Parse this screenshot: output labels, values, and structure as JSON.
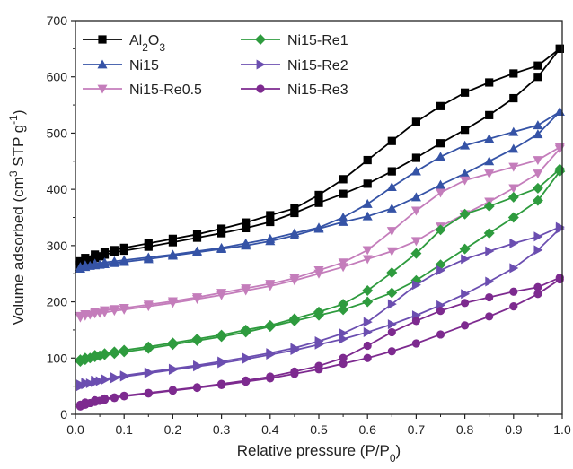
{
  "chart_data": {
    "type": "line",
    "xlabel": "Relative pressure (P/P",
    "xlabel_sub": "0",
    "xlabel_end": ")",
    "ylabel": "Volume adsorbed (cm",
    "ylabel_sup1": "3",
    "ylabel_mid": " STP g",
    "ylabel_sup2": "-1",
    "ylabel_end": ")",
    "xlim": [
      0.0,
      1.0
    ],
    "ylim": [
      0,
      700
    ],
    "xticks": [
      "0.0",
      "0.1",
      "0.2",
      "0.3",
      "0.4",
      "0.5",
      "0.6",
      "0.7",
      "0.8",
      "0.9",
      "1.0"
    ],
    "yticks": [
      "0",
      "100",
      "200",
      "300",
      "400",
      "500",
      "600",
      "700"
    ],
    "legend_position": "top-left",
    "series": [
      {
        "name": "Al2O3",
        "name_main": "Al",
        "name_sub1": "2",
        "name_mid": "O",
        "name_sub2": "3",
        "color": "#000000",
        "marker": "square",
        "adsorption": [
          [
            0.01,
            266
          ],
          [
            0.02,
            271
          ],
          [
            0.03,
            275
          ],
          [
            0.04,
            278
          ],
          [
            0.05,
            281
          ],
          [
            0.06,
            284
          ],
          [
            0.08,
            288
          ],
          [
            0.1,
            291
          ],
          [
            0.15,
            298
          ],
          [
            0.2,
            306
          ],
          [
            0.25,
            314
          ],
          [
            0.3,
            322
          ],
          [
            0.35,
            331
          ],
          [
            0.4,
            342
          ],
          [
            0.45,
            358
          ],
          [
            0.5,
            376
          ],
          [
            0.55,
            392
          ],
          [
            0.6,
            410
          ],
          [
            0.65,
            432
          ],
          [
            0.7,
            456
          ],
          [
            0.75,
            482
          ],
          [
            0.8,
            506
          ],
          [
            0.85,
            532
          ],
          [
            0.9,
            562
          ],
          [
            0.95,
            600
          ],
          [
            0.995,
            650
          ]
        ],
        "desorption": [
          [
            0.995,
            650
          ],
          [
            0.95,
            620
          ],
          [
            0.9,
            606
          ],
          [
            0.85,
            590
          ],
          [
            0.8,
            572
          ],
          [
            0.75,
            548
          ],
          [
            0.7,
            520
          ],
          [
            0.65,
            486
          ],
          [
            0.6,
            452
          ],
          [
            0.55,
            418
          ],
          [
            0.5,
            390
          ],
          [
            0.45,
            366
          ],
          [
            0.4,
            354
          ],
          [
            0.35,
            341
          ],
          [
            0.3,
            330
          ],
          [
            0.25,
            320
          ],
          [
            0.2,
            312
          ],
          [
            0.15,
            304
          ],
          [
            0.1,
            296
          ],
          [
            0.08,
            292
          ],
          [
            0.06,
            288
          ],
          [
            0.04,
            284
          ],
          [
            0.02,
            278
          ],
          [
            0.01,
            272
          ]
        ]
      },
      {
        "name": "Ni15",
        "color": "#3553a6",
        "marker": "triangle-up",
        "adsorption": [
          [
            0.01,
            259
          ],
          [
            0.02,
            262
          ],
          [
            0.03,
            264
          ],
          [
            0.04,
            265
          ],
          [
            0.05,
            266
          ],
          [
            0.06,
            267
          ],
          [
            0.08,
            269
          ],
          [
            0.1,
            271
          ],
          [
            0.15,
            276
          ],
          [
            0.2,
            282
          ],
          [
            0.25,
            288
          ],
          [
            0.3,
            294
          ],
          [
            0.35,
            300
          ],
          [
            0.4,
            308
          ],
          [
            0.45,
            318
          ],
          [
            0.5,
            330
          ],
          [
            0.55,
            342
          ],
          [
            0.6,
            352
          ],
          [
            0.65,
            366
          ],
          [
            0.7,
            386
          ],
          [
            0.75,
            408
          ],
          [
            0.8,
            428
          ],
          [
            0.85,
            450
          ],
          [
            0.9,
            472
          ],
          [
            0.95,
            498
          ],
          [
            0.995,
            538
          ]
        ],
        "desorption": [
          [
            0.995,
            538
          ],
          [
            0.95,
            514
          ],
          [
            0.9,
            502
          ],
          [
            0.85,
            490
          ],
          [
            0.8,
            478
          ],
          [
            0.75,
            458
          ],
          [
            0.7,
            432
          ],
          [
            0.65,
            404
          ],
          [
            0.6,
            374
          ],
          [
            0.55,
            350
          ],
          [
            0.5,
            332
          ],
          [
            0.45,
            322
          ],
          [
            0.4,
            312
          ],
          [
            0.35,
            304
          ],
          [
            0.3,
            296
          ],
          [
            0.25,
            290
          ],
          [
            0.2,
            284
          ],
          [
            0.15,
            279
          ],
          [
            0.1,
            274
          ],
          [
            0.08,
            272
          ],
          [
            0.06,
            270
          ],
          [
            0.04,
            268
          ],
          [
            0.02,
            265
          ],
          [
            0.01,
            262
          ]
        ]
      },
      {
        "name": "Ni15-Re0.5",
        "color": "#c47dbb",
        "marker": "triangle-down",
        "adsorption": [
          [
            0.01,
            172
          ],
          [
            0.02,
            175
          ],
          [
            0.03,
            177
          ],
          [
            0.04,
            179
          ],
          [
            0.05,
            180
          ],
          [
            0.06,
            181
          ],
          [
            0.08,
            184
          ],
          [
            0.1,
            186
          ],
          [
            0.15,
            192
          ],
          [
            0.2,
            198
          ],
          [
            0.25,
            205
          ],
          [
            0.3,
            212
          ],
          [
            0.35,
            220
          ],
          [
            0.4,
            228
          ],
          [
            0.45,
            238
          ],
          [
            0.5,
            250
          ],
          [
            0.55,
            262
          ],
          [
            0.6,
            276
          ],
          [
            0.65,
            290
          ],
          [
            0.7,
            308
          ],
          [
            0.75,
            334
          ],
          [
            0.8,
            356
          ],
          [
            0.85,
            378
          ],
          [
            0.9,
            402
          ],
          [
            0.95,
            428
          ],
          [
            0.995,
            472
          ]
        ],
        "desorption": [
          [
            0.995,
            475
          ],
          [
            0.95,
            452
          ],
          [
            0.9,
            440
          ],
          [
            0.85,
            428
          ],
          [
            0.8,
            416
          ],
          [
            0.75,
            394
          ],
          [
            0.7,
            362
          ],
          [
            0.65,
            326
          ],
          [
            0.6,
            292
          ],
          [
            0.55,
            270
          ],
          [
            0.5,
            256
          ],
          [
            0.45,
            242
          ],
          [
            0.4,
            232
          ],
          [
            0.35,
            224
          ],
          [
            0.3,
            216
          ],
          [
            0.25,
            208
          ],
          [
            0.2,
            201
          ],
          [
            0.15,
            195
          ],
          [
            0.1,
            189
          ],
          [
            0.08,
            187
          ],
          [
            0.06,
            185
          ],
          [
            0.04,
            182
          ],
          [
            0.02,
            178
          ],
          [
            0.01,
            175
          ]
        ]
      },
      {
        "name": "Ni15-Re1",
        "color": "#2e9b3e",
        "marker": "diamond",
        "adsorption": [
          [
            0.01,
            94
          ],
          [
            0.02,
            97
          ],
          [
            0.03,
            100
          ],
          [
            0.04,
            102
          ],
          [
            0.05,
            104
          ],
          [
            0.06,
            106
          ],
          [
            0.08,
            108
          ],
          [
            0.1,
            111
          ],
          [
            0.15,
            117
          ],
          [
            0.2,
            124
          ],
          [
            0.25,
            131
          ],
          [
            0.3,
            138
          ],
          [
            0.35,
            146
          ],
          [
            0.4,
            156
          ],
          [
            0.45,
            166
          ],
          [
            0.5,
            176
          ],
          [
            0.55,
            186
          ],
          [
            0.6,
            200
          ],
          [
            0.65,
            216
          ],
          [
            0.7,
            238
          ],
          [
            0.75,
            266
          ],
          [
            0.8,
            294
          ],
          [
            0.85,
            322
          ],
          [
            0.9,
            350
          ],
          [
            0.95,
            380
          ],
          [
            0.995,
            432
          ]
        ],
        "desorption": [
          [
            0.995,
            436
          ],
          [
            0.95,
            402
          ],
          [
            0.9,
            386
          ],
          [
            0.85,
            370
          ],
          [
            0.8,
            356
          ],
          [
            0.75,
            328
          ],
          [
            0.7,
            286
          ],
          [
            0.65,
            252
          ],
          [
            0.6,
            220
          ],
          [
            0.55,
            196
          ],
          [
            0.5,
            182
          ],
          [
            0.45,
            170
          ],
          [
            0.4,
            158
          ],
          [
            0.35,
            150
          ],
          [
            0.3,
            141
          ],
          [
            0.25,
            134
          ],
          [
            0.2,
            127
          ],
          [
            0.15,
            120
          ],
          [
            0.1,
            114
          ],
          [
            0.08,
            111
          ],
          [
            0.06,
            108
          ],
          [
            0.04,
            105
          ],
          [
            0.02,
            100
          ],
          [
            0.01,
            97
          ]
        ]
      },
      {
        "name": "Ni15-Re2",
        "color": "#6b4eb0",
        "marker": "triangle-right",
        "adsorption": [
          [
            0.01,
            50
          ],
          [
            0.02,
            53
          ],
          [
            0.03,
            55
          ],
          [
            0.04,
            57
          ],
          [
            0.05,
            59
          ],
          [
            0.06,
            61
          ],
          [
            0.08,
            64
          ],
          [
            0.1,
            67
          ],
          [
            0.15,
            73
          ],
          [
            0.2,
            79
          ],
          [
            0.25,
            85
          ],
          [
            0.3,
            91
          ],
          [
            0.35,
            98
          ],
          [
            0.4,
            106
          ],
          [
            0.45,
            114
          ],
          [
            0.5,
            124
          ],
          [
            0.55,
            134
          ],
          [
            0.6,
            146
          ],
          [
            0.65,
            160
          ],
          [
            0.7,
            176
          ],
          [
            0.75,
            194
          ],
          [
            0.8,
            214
          ],
          [
            0.85,
            236
          ],
          [
            0.9,
            260
          ],
          [
            0.95,
            292
          ],
          [
            0.995,
            330
          ]
        ],
        "desorption": [
          [
            0.995,
            333
          ],
          [
            0.95,
            316
          ],
          [
            0.9,
            304
          ],
          [
            0.85,
            290
          ],
          [
            0.8,
            276
          ],
          [
            0.75,
            256
          ],
          [
            0.7,
            230
          ],
          [
            0.65,
            196
          ],
          [
            0.6,
            164
          ],
          [
            0.55,
            144
          ],
          [
            0.5,
            130
          ],
          [
            0.45,
            118
          ],
          [
            0.4,
            109
          ],
          [
            0.35,
            101
          ],
          [
            0.3,
            94
          ],
          [
            0.25,
            87
          ],
          [
            0.2,
            81
          ],
          [
            0.15,
            75
          ],
          [
            0.1,
            69
          ],
          [
            0.08,
            66
          ],
          [
            0.06,
            63
          ],
          [
            0.04,
            60
          ],
          [
            0.02,
            56
          ],
          [
            0.01,
            53
          ]
        ]
      },
      {
        "name": "Ni15-Re3",
        "color": "#7d2a8f",
        "marker": "circle",
        "adsorption": [
          [
            0.01,
            14
          ],
          [
            0.02,
            17
          ],
          [
            0.03,
            20
          ],
          [
            0.04,
            22
          ],
          [
            0.05,
            24
          ],
          [
            0.06,
            26
          ],
          [
            0.08,
            29
          ],
          [
            0.1,
            32
          ],
          [
            0.15,
            37
          ],
          [
            0.2,
            42
          ],
          [
            0.25,
            47
          ],
          [
            0.3,
            52
          ],
          [
            0.35,
            58
          ],
          [
            0.4,
            64
          ],
          [
            0.45,
            72
          ],
          [
            0.5,
            80
          ],
          [
            0.55,
            90
          ],
          [
            0.6,
            100
          ],
          [
            0.65,
            112
          ],
          [
            0.7,
            126
          ],
          [
            0.75,
            142
          ],
          [
            0.8,
            158
          ],
          [
            0.85,
            174
          ],
          [
            0.9,
            192
          ],
          [
            0.95,
            214
          ],
          [
            0.995,
            240
          ]
        ],
        "desorption": [
          [
            0.995,
            243
          ],
          [
            0.95,
            226
          ],
          [
            0.9,
            218
          ],
          [
            0.85,
            208
          ],
          [
            0.8,
            198
          ],
          [
            0.75,
            184
          ],
          [
            0.7,
            166
          ],
          [
            0.65,
            146
          ],
          [
            0.6,
            122
          ],
          [
            0.55,
            100
          ],
          [
            0.5,
            86
          ],
          [
            0.45,
            76
          ],
          [
            0.4,
            67
          ],
          [
            0.35,
            60
          ],
          [
            0.3,
            54
          ],
          [
            0.25,
            48
          ],
          [
            0.2,
            43
          ],
          [
            0.15,
            38
          ],
          [
            0.1,
            33
          ],
          [
            0.08,
            30
          ],
          [
            0.06,
            28
          ],
          [
            0.04,
            25
          ],
          [
            0.02,
            21
          ],
          [
            0.01,
            17
          ]
        ]
      }
    ]
  }
}
